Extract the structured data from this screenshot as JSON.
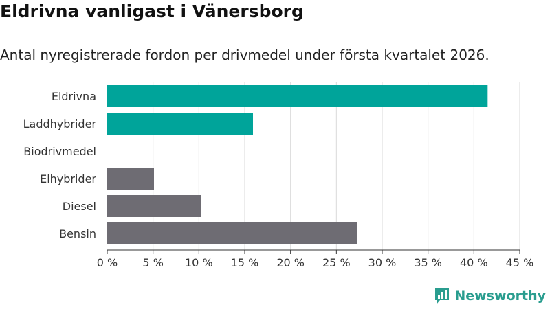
{
  "chart_data": {
    "type": "bar",
    "orientation": "horizontal",
    "title": "Eldrivna vanligast i Vänersborg",
    "subtitle": "Antal nyregistrerade fordon per drivmedel under första kvartalet 2026.",
    "categories": [
      "Eldrivna",
      "Laddhybrider",
      "Biodrivmedel",
      "Elhybrider",
      "Diesel",
      "Bensin"
    ],
    "values": [
      41.5,
      15.9,
      0,
      5.1,
      10.2,
      27.3
    ],
    "unit": "%",
    "xlim": [
      0,
      45
    ],
    "xticks": [
      0,
      5,
      10,
      15,
      20,
      25,
      30,
      35,
      40,
      45
    ],
    "xtick_labels": [
      "0 %",
      "5 %",
      "10 %",
      "15 %",
      "20 %",
      "25 %",
      "30 %",
      "35 %",
      "40 %",
      "45 %"
    ],
    "grid": true,
    "colors": {
      "electric": "#00a49a",
      "fossil": "#6e6c73",
      "grid": "#d9d9d9",
      "axis": "#333333"
    },
    "bar_colors": [
      "#00a49a",
      "#00a49a",
      "#00a49a",
      "#6e6c73",
      "#6e6c73",
      "#6e6c73"
    ]
  },
  "brand": {
    "name": "Newsworthy",
    "color": "#2a9d8f",
    "icon": "bar-chart-speech-icon"
  }
}
